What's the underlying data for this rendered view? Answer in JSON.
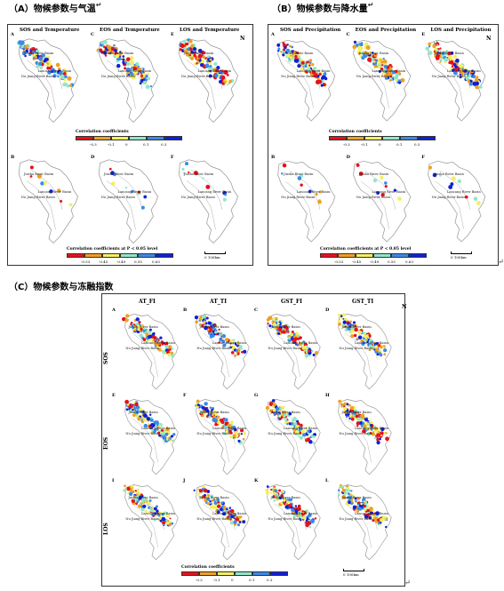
{
  "captions": {
    "a": "（A）物候参数与气温",
    "b": "（B）物候参数与降水量",
    "c": "（C）物候参数与冻融指数"
  },
  "return_mark": "↵",
  "colors": {
    "scale": [
      "#e8101a",
      "#f0a020",
      "#f3f060",
      "#8ee8c8",
      "#3a8ae8",
      "#1020d8"
    ]
  },
  "basins": {
    "jinsha": "Jinsha River Basin",
    "lancang": "Lancang River Basin",
    "nujiang": "Nu Jiang River Basin"
  },
  "north_symbol": "N",
  "panel_a": {
    "top": [
      {
        "label": "A",
        "title": "SOS and Temperature"
      },
      {
        "label": "C",
        "title": "EOS and Temperature"
      },
      {
        "label": "E",
        "title": "LOS and Temperature"
      }
    ],
    "bottom": [
      {
        "label": "B"
      },
      {
        "label": "D"
      },
      {
        "label": "F"
      }
    ],
    "legend1_title": "Correlation coefficients",
    "legend1_ticks": [
      "-0.3",
      "-0.1",
      "0",
      "0.1",
      "0.3"
    ],
    "legend2_title": "Correlation coefficients at P < 0.05 level",
    "legend2_ticks": [
      "-0.53",
      "-0.45",
      "-0.49",
      "0.55",
      "0.63"
    ],
    "scale": "0  100km"
  },
  "panel_b": {
    "top": [
      {
        "label": "A",
        "title": "SOS and Precipitation"
      },
      {
        "label": "C",
        "title": "EOS and Precipitation"
      },
      {
        "label": "E",
        "title": "LOS and Precipitation"
      }
    ],
    "bottom": [
      {
        "label": "B"
      },
      {
        "label": "D"
      },
      {
        "label": "F"
      }
    ],
    "legend1_title": "Correlation coefficients",
    "legend1_ticks": [
      "-0.3",
      "-0.1",
      "0",
      "0.1",
      "0.3"
    ],
    "legend2_title": "Correlation coefficients  at P < 0.05 level",
    "legend2_ticks": [
      "-0.53",
      "-0.45",
      "-0.49",
      "0.55",
      "0.63"
    ],
    "scale": "0  100km"
  },
  "panel_c": {
    "columns": [
      "AT_FI",
      "AT_TI",
      "GST_FI",
      "GST_TI"
    ],
    "rows": [
      "SOS",
      "EOS",
      "LOS"
    ],
    "labels": [
      "A",
      "B",
      "C",
      "D",
      "E",
      "F",
      "G",
      "H",
      "I",
      "J",
      "K",
      "L"
    ],
    "legend_title": "Correlation coefficients",
    "legend_ticks": [
      "-0.3",
      "-0.1",
      "0",
      "0.1",
      "0.3"
    ],
    "scale": "0    100km"
  }
}
